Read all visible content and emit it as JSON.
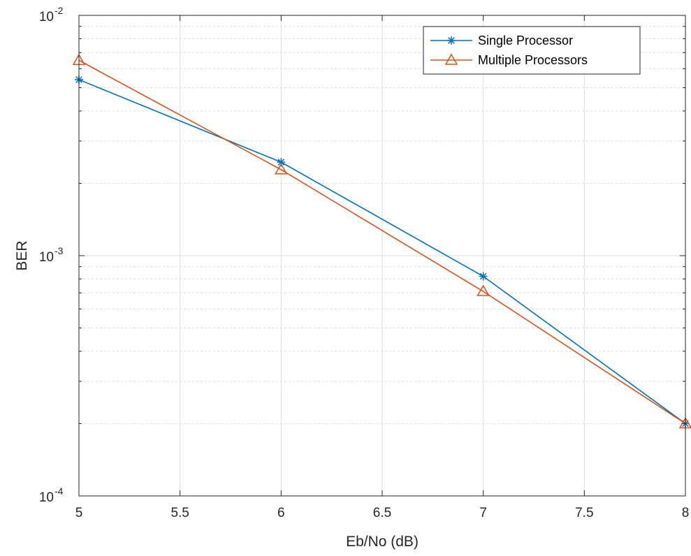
{
  "chart_data": {
    "type": "line",
    "title": "",
    "xlabel": "Eb/No (dB)",
    "ylabel": "BER",
    "yscale": "log",
    "xlim": [
      5,
      8
    ],
    "ylim": [
      0.0001,
      0.01
    ],
    "x": [
      5,
      6,
      7,
      8
    ],
    "xticks": [
      5,
      5.5,
      6,
      6.5,
      7,
      7.5,
      8
    ],
    "xtick_labels": [
      "5",
      "5.5",
      "6",
      "6.5",
      "7",
      "7.5",
      "8"
    ],
    "ytick_labels": [
      {
        "base": "10",
        "exp": "-4"
      },
      {
        "base": "10",
        "exp": "-3"
      },
      {
        "base": "10",
        "exp": "-2"
      }
    ],
    "grid": true,
    "minor_grid": true,
    "legend_position": "top-right",
    "series": [
      {
        "name": "Single Processor",
        "color": "#0072BD",
        "marker": "asterisk",
        "values": [
          0.0054,
          0.00245,
          0.00082,
          0.0002
        ]
      },
      {
        "name": "Multiple Processors",
        "color": "#D95319",
        "marker": "triangle",
        "values": [
          0.0065,
          0.00228,
          0.00071,
          0.0002
        ]
      }
    ]
  }
}
